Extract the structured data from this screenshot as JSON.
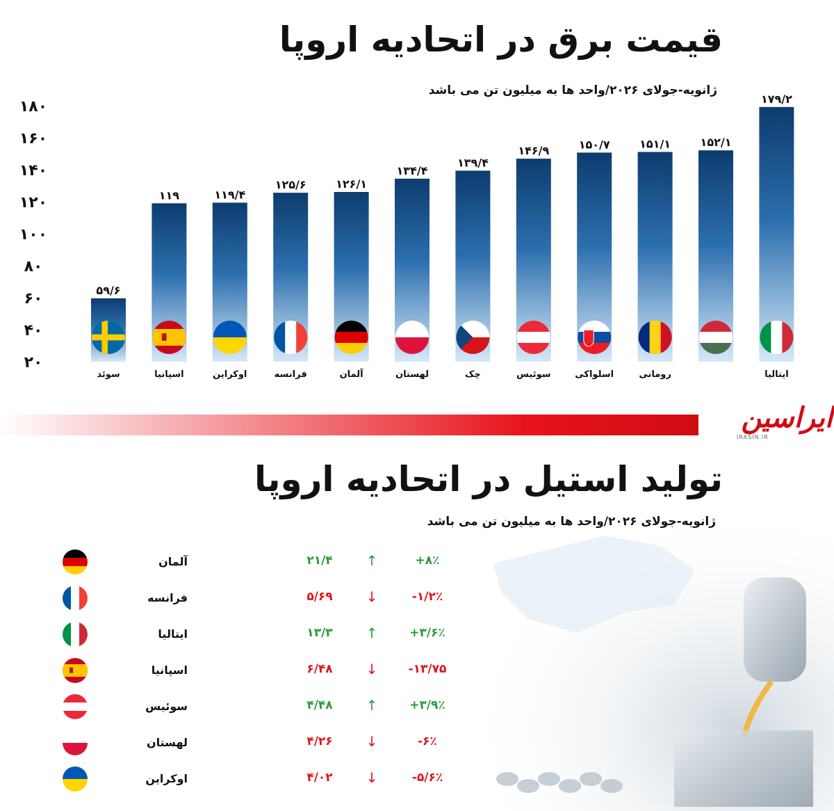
{
  "chart_data": {
    "type": "bar",
    "title": "قیمت برق در اتحادیه اروپا",
    "subtitle": "ژانویه-جولای ۲۰۲۶/واحد ها به میلیون تن می باشد",
    "ylim": [
      20,
      180
    ],
    "yticks": [
      "۲۰",
      "۴۰",
      "۶۰",
      "۸۰",
      "۱۰۰",
      "۱۲۰",
      "۱۴۰",
      "۱۶۰",
      "۱۸۰"
    ],
    "ytick_values": [
      20,
      40,
      60,
      80,
      100,
      120,
      140,
      160,
      180
    ],
    "categories": [
      "سوئد",
      "اسپانیا",
      "اوکراین",
      "فرانسه",
      "آلمان",
      "لهستان",
      "چک",
      "سوئیس",
      "اسلواکی",
      "رومانی",
      "",
      "ایتالیا"
    ],
    "values": [
      59.6,
      119,
      119.4,
      125.6,
      126.1,
      134.4,
      139.4,
      146.9,
      150.7,
      151.1,
      152.1,
      179.2
    ],
    "value_labels": [
      "۵۹/۶",
      "۱۱۹",
      "۱۱۹/۴",
      "۱۲۵/۶",
      "۱۲۶/۱",
      "۱۳۴/۴",
      "۱۳۹/۴",
      "۱۴۶/۹",
      "۱۵۰/۷",
      "۱۵۱/۱",
      "۱۵۲/۱",
      "۱۷۹/۲"
    ],
    "flags": [
      "sweden",
      "spain",
      "ukraine",
      "france",
      "germany",
      "poland",
      "czech",
      "austria",
      "slovakia",
      "romania",
      "hungary",
      "italy"
    ],
    "bar_color_top": "#0d3c6e",
    "bar_color_bottom": "#c9e0f5"
  },
  "logo": {
    "text": "ایراسین",
    "sub": "IRASIN.IR"
  },
  "steel": {
    "title": "تولید استیل در اتحادیه اروپا",
    "subtitle": "ژانویه-جولای ۲۰۲۶/واحد ها به میلیون تن می باشد",
    "rows": [
      {
        "country": "آلمان",
        "flag": "germany",
        "value": "۲۱/۴",
        "arrow": "↑",
        "trend": "up",
        "change": "+۸٪"
      },
      {
        "country": "فرانسه",
        "flag": "france",
        "value": "۵/۶۹",
        "arrow": "↓",
        "trend": "down",
        "change": "-۱/۲٪"
      },
      {
        "country": "ایتالیا",
        "flag": "italy",
        "value": "۱۳/۳",
        "arrow": "↑",
        "trend": "up",
        "change": "+۳/۶٪"
      },
      {
        "country": "اسپانیا",
        "flag": "spain",
        "value": "۶/۴۸",
        "arrow": "↓",
        "trend": "down",
        "change": "-۱۳/۷۵"
      },
      {
        "country": "سوئیس",
        "flag": "austria",
        "value": "۴/۴۸",
        "arrow": "↑",
        "trend": "up",
        "change": "+۳/۹٪"
      },
      {
        "country": "لهستان",
        "flag": "poland",
        "value": "۴/۲۶",
        "arrow": "↓",
        "trend": "down",
        "change": "-۶٪"
      },
      {
        "country": "اوکراین",
        "flag": "ukraine",
        "value": "۴/۰۲",
        "arrow": "↓",
        "trend": "down",
        "change": "-۵/۶٪"
      }
    ]
  }
}
